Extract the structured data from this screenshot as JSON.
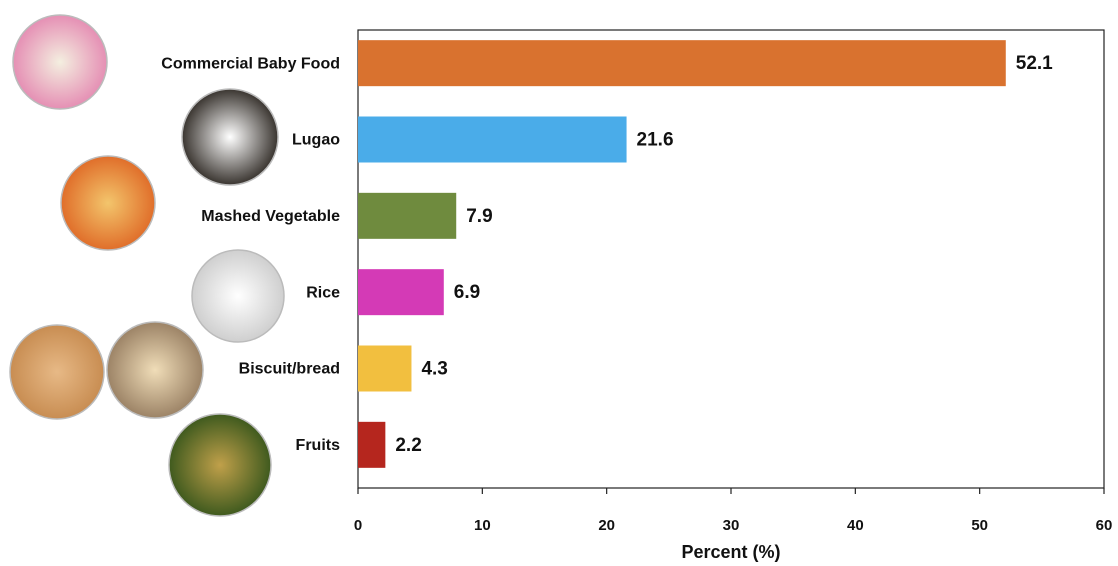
{
  "chart_data": {
    "type": "hbar",
    "categories": [
      "Commercial Baby Food",
      "Lugao",
      "Mashed Vegetable",
      "Rice",
      "Biscuit/bread",
      "Fruits"
    ],
    "values": [
      52.1,
      21.6,
      7.9,
      6.9,
      4.3,
      2.2
    ],
    "colors": [
      "#d9722f",
      "#4aace9",
      "#6f8b3e",
      "#d43ab6",
      "#f2bf3f",
      "#b5261e"
    ],
    "x_label": "Percent (%)",
    "xlim": [
      0,
      60
    ],
    "xticks": [
      0,
      10,
      20,
      30,
      40,
      50,
      60
    ]
  }
}
